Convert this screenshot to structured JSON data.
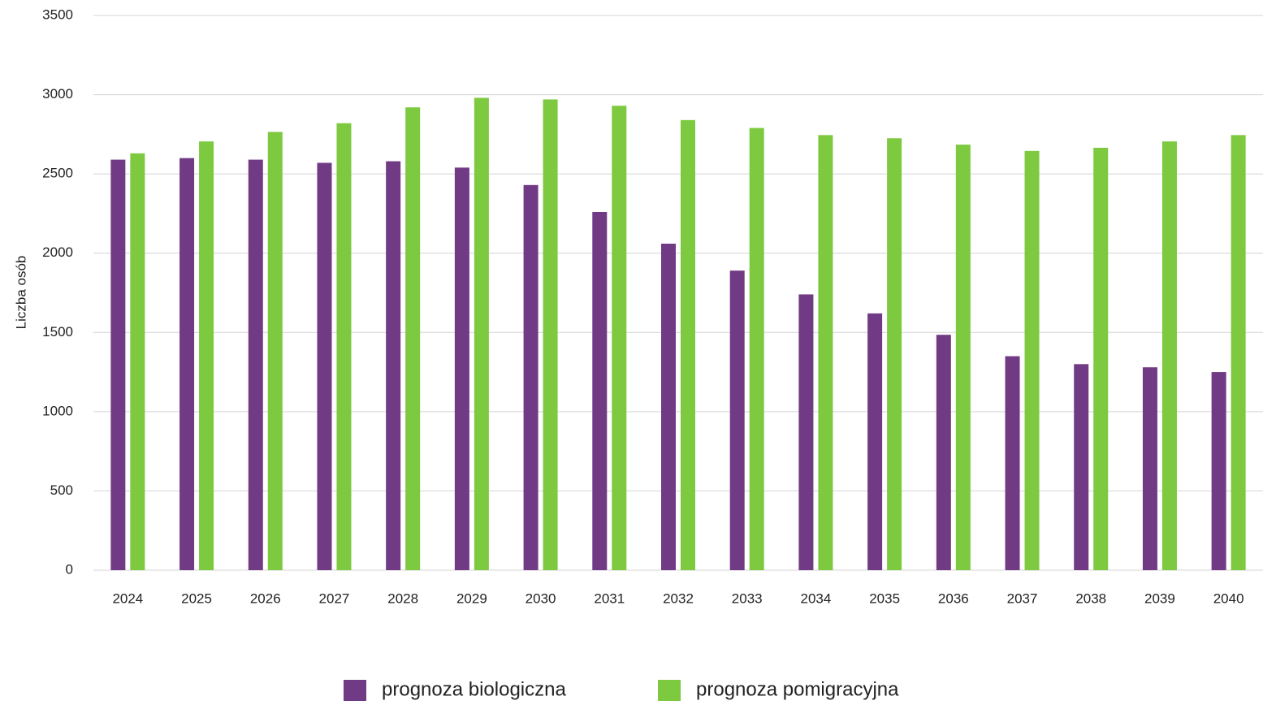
{
  "chart_data": {
    "type": "bar",
    "y_label": "Liczba osób",
    "categories": [
      "2024",
      "2025",
      "2026",
      "2027",
      "2028",
      "2029",
      "2030",
      "2031",
      "2032",
      "2033",
      "2034",
      "2035",
      "2036",
      "2037",
      "2038",
      "2039",
      "2040"
    ],
    "series": [
      {
        "name": "prognoza biologiczna",
        "color": "#713a85",
        "values": [
          2590,
          2600,
          2590,
          2570,
          2580,
          2540,
          2430,
          2260,
          2060,
          1890,
          1740,
          1620,
          1485,
          1350,
          1300,
          1280,
          1250
        ]
      },
      {
        "name": "prognoza pomigracyjna",
        "color": "#7dc940",
        "values": [
          2630,
          2705,
          2765,
          2820,
          2920,
          2980,
          2970,
          2930,
          2840,
          2790,
          2745,
          2725,
          2685,
          2645,
          2665,
          2705,
          2745
        ]
      }
    ],
    "ylim": [
      0,
      3500
    ],
    "yticks": [
      0,
      500,
      1000,
      1500,
      2000,
      2500,
      3000,
      3500
    ],
    "grid": true,
    "legend": "bottom"
  }
}
